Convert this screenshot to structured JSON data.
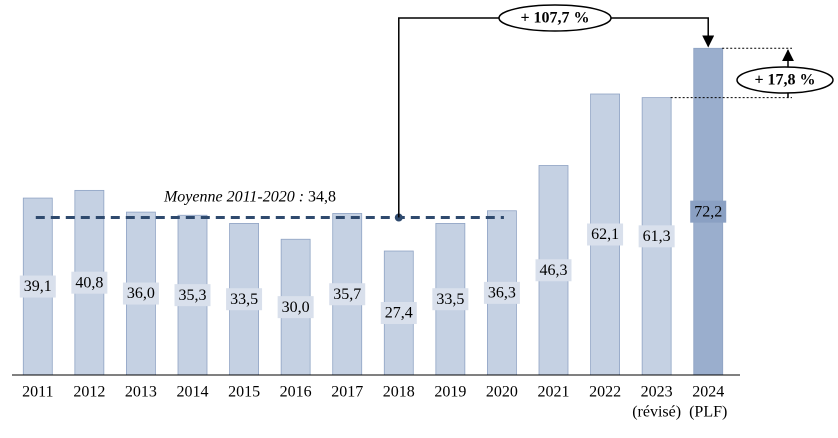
{
  "chart_data": {
    "type": "bar",
    "categories": [
      "2011",
      "2012",
      "2013",
      "2014",
      "2015",
      "2016",
      "2017",
      "2018",
      "2019",
      "2020",
      "2021",
      "2022",
      "2023",
      "2024"
    ],
    "category_notes": [
      null,
      null,
      null,
      null,
      null,
      null,
      null,
      null,
      null,
      null,
      null,
      null,
      "(révisé)",
      "(PLF)"
    ],
    "values": [
      39.1,
      40.8,
      36.0,
      35.3,
      33.5,
      30.0,
      35.7,
      27.4,
      33.5,
      36.3,
      46.3,
      62.1,
      61.3,
      72.2
    ],
    "value_labels": [
      "39,1",
      "40,8",
      "36,0",
      "35,3",
      "33,5",
      "30,0",
      "35,7",
      "27,4",
      "33,5",
      "36,3",
      "46,3",
      "62,1",
      "61,3",
      "72,2"
    ],
    "colors": [
      "#c5d1e3",
      "#c5d1e3",
      "#c5d1e3",
      "#c5d1e3",
      "#c5d1e3",
      "#c5d1e3",
      "#c5d1e3",
      "#c5d1e3",
      "#c5d1e3",
      "#c5d1e3",
      "#c5d1e3",
      "#c5d1e3",
      "#c5d1e3",
      "#9aaecd"
    ],
    "ylim": [
      0,
      80
    ],
    "average": {
      "label": "Moyenne 2011-2020 :",
      "value": 34.8,
      "value_label": "34,8"
    },
    "annotations": [
      "+ 107,7 %",
      "+ 17,8 %"
    ]
  }
}
